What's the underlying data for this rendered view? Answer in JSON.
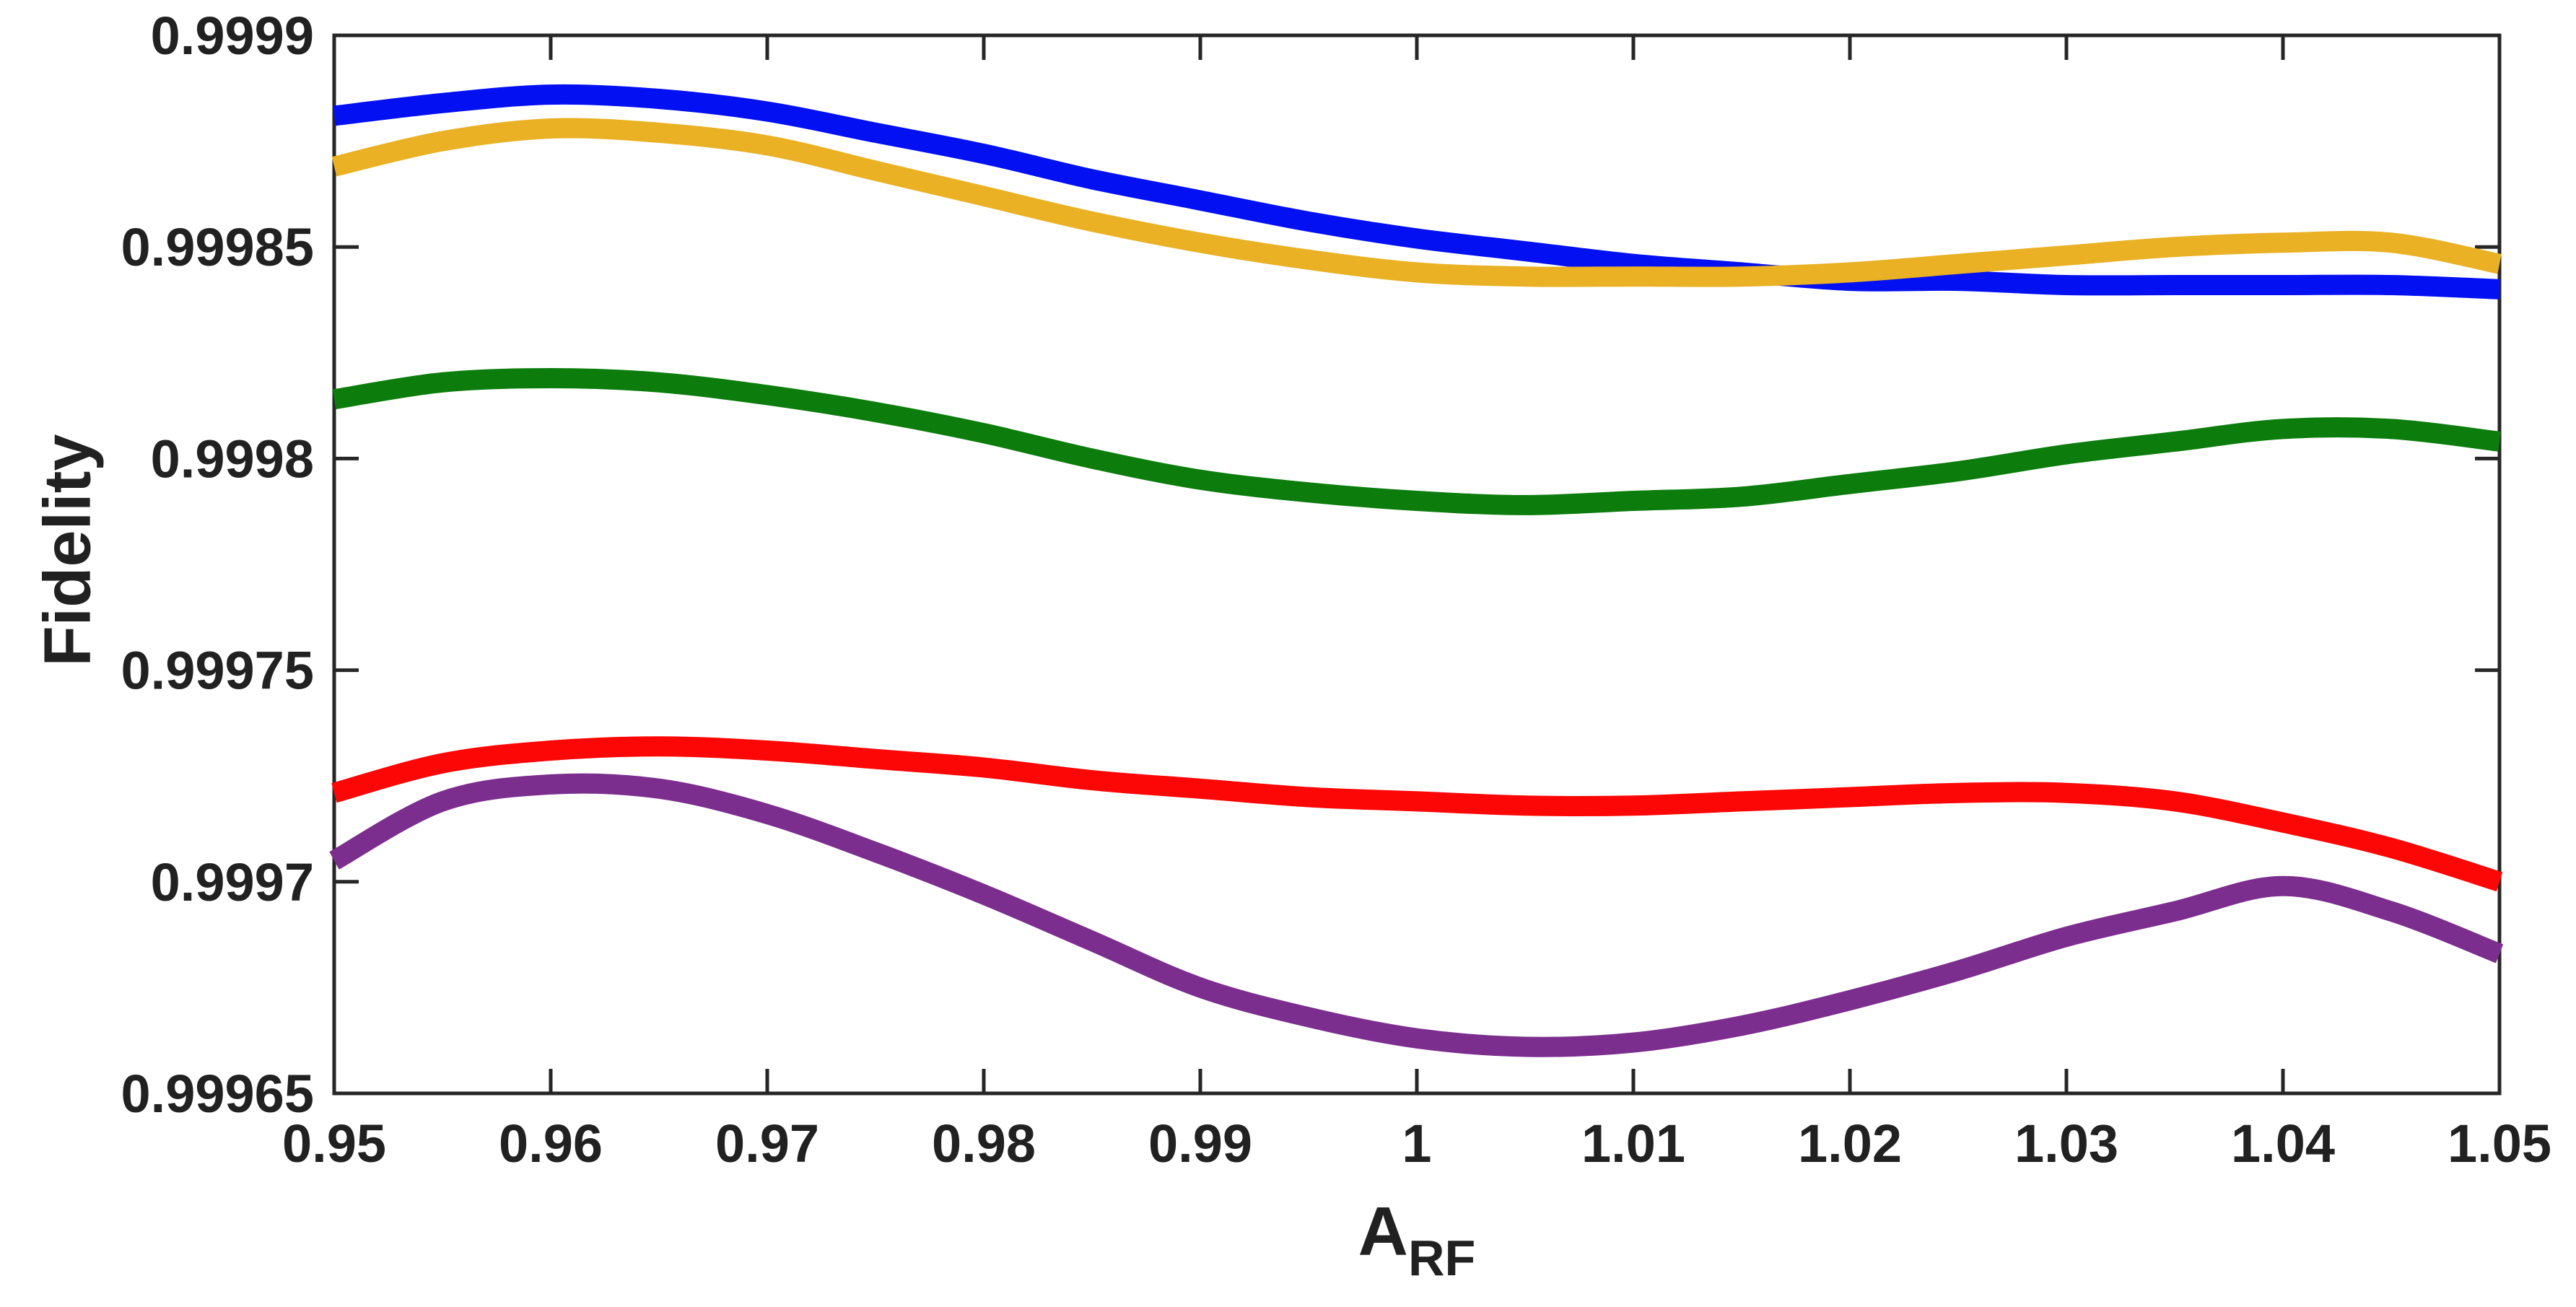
{
  "figure": {
    "background": "#ffffff",
    "axis_color": "#262626",
    "text_color": "#212121",
    "xlabel_base": "A",
    "xlabel_sub": "RF"
  },
  "chart_data": {
    "type": "line",
    "title": "",
    "xlabel": "A_RF",
    "ylabel": "Fidelity",
    "xlim": [
      0.95,
      1.05
    ],
    "ylim": [
      0.99965,
      0.9999
    ],
    "grid": false,
    "legend_position": "none",
    "x_ticks": [
      0.95,
      0.96,
      0.97,
      0.98,
      0.99,
      1.0,
      1.01,
      1.02,
      1.03,
      1.04,
      1.05
    ],
    "x_tick_labels": [
      "0.95",
      "0.96",
      "0.97",
      "0.98",
      "0.99",
      "1",
      "1.01",
      "1.02",
      "1.03",
      "1.04",
      "1.05"
    ],
    "y_ticks": [
      0.99965,
      0.9997,
      0.99975,
      0.9998,
      0.99985,
      0.9999
    ],
    "y_tick_labels": [
      "0.99965",
      "0.9997",
      "0.99975",
      "0.9998",
      "0.99985",
      "0.9999"
    ],
    "x": [
      0.95,
      0.955,
      0.96,
      0.965,
      0.97,
      0.975,
      0.98,
      0.985,
      0.99,
      0.995,
      1.0,
      1.005,
      1.01,
      1.015,
      1.02,
      1.025,
      1.03,
      1.035,
      1.04,
      1.045,
      1.05
    ],
    "series": [
      {
        "name": "blue",
        "color": "#0310f2",
        "values": [
          0.999881,
          0.999884,
          0.999886,
          0.999885,
          0.999882,
          0.999877,
          0.999872,
          0.999866,
          0.999861,
          0.999856,
          0.999852,
          0.999849,
          0.999846,
          0.999844,
          0.999842,
          0.999842,
          0.999841,
          0.999841,
          0.999841,
          0.999841,
          0.99984
        ]
      },
      {
        "name": "gold",
        "color": "#e9b123",
        "values": [
          0.999869,
          0.999875,
          0.999878,
          0.999877,
          0.999874,
          0.999868,
          0.999862,
          0.999856,
          0.999851,
          0.999847,
          0.999844,
          0.999843,
          0.999843,
          0.999843,
          0.999844,
          0.999846,
          0.999848,
          0.99985,
          0.999851,
          0.999851,
          0.999846
        ]
      },
      {
        "name": "green",
        "color": "#0c7d0c",
        "values": [
          0.999814,
          0.999818,
          0.999819,
          0.999818,
          0.999815,
          0.999811,
          0.999806,
          0.9998,
          0.999795,
          0.999792,
          0.99979,
          0.999789,
          0.99979,
          0.999791,
          0.999794,
          0.999797,
          0.999801,
          0.999804,
          0.999807,
          0.999807,
          0.999804
        ]
      },
      {
        "name": "red",
        "color": "#fd0606",
        "values": [
          0.999721,
          0.999728,
          0.999731,
          0.999732,
          0.999731,
          0.999729,
          0.999727,
          0.999724,
          0.999722,
          0.99972,
          0.999719,
          0.999718,
          0.999718,
          0.999719,
          0.99972,
          0.999721,
          0.999721,
          0.999719,
          0.999714,
          0.999708,
          0.9997
        ]
      },
      {
        "name": "purple",
        "color": "#7c2e8e",
        "values": [
          0.999705,
          0.999719,
          0.999723,
          0.999722,
          0.999716,
          0.999707,
          0.999697,
          0.999686,
          0.999675,
          0.999668,
          0.999663,
          0.999661,
          0.999662,
          0.999666,
          0.999672,
          0.999679,
          0.999687,
          0.999693,
          0.999699,
          0.999693,
          0.999683
        ]
      }
    ]
  }
}
